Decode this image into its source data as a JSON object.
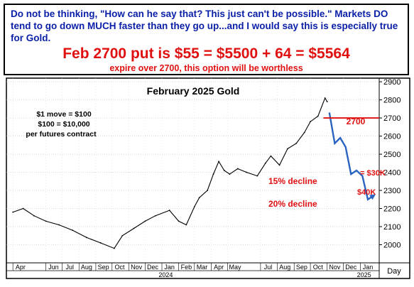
{
  "header": {
    "note": "Do not be thinking, \"How can he say that? This just can't be possible.\" Markets DO tend to go down MUCH faster than they go up...and I would say this is especially true for Gold.",
    "headline": "Feb 2700 put is $55 = $5500 + 64 = $5564",
    "subline": "expire over 2700, this option will be worthless"
  },
  "chart_data": {
    "type": "line",
    "title": "February 2025 Gold",
    "xlabel": "",
    "ylabel": "",
    "ylim": [
      1900,
      2920
    ],
    "yticks": [
      2000,
      2100,
      2200,
      2300,
      2400,
      2500,
      2600,
      2700,
      2800,
      2900
    ],
    "x_tick_labels": [
      "Apr",
      "Jun",
      "Jul",
      "Aug",
      "Sep",
      "Oct",
      "Nov",
      "Dec",
      "Jan",
      "Feb",
      "Mar",
      "Apr",
      "May",
      "Jul",
      "Aug",
      "Sep",
      "Oct",
      "Nov",
      "Dec",
      "Jan"
    ],
    "year_labels": [
      "2024",
      "2025"
    ],
    "x_axis_unit": "Day",
    "series": [
      {
        "x": [
          "2023-04-01",
          "2023-04-20",
          "2023-05-10",
          "2023-06-01",
          "2023-06-25",
          "2023-07-20",
          "2023-08-15",
          "2023-09-10",
          "2023-10-05",
          "2023-10-20",
          "2023-11-10",
          "2023-12-01",
          "2023-12-20",
          "2024-01-15",
          "2024-02-01",
          "2024-02-15",
          "2024-03-01",
          "2024-03-10",
          "2024-03-25",
          "2024-04-05",
          "2024-04-15",
          "2024-04-25",
          "2024-05-05",
          "2024-05-20",
          "2024-06-05",
          "2024-06-25",
          "2024-07-10",
          "2024-07-20",
          "2024-08-05",
          "2024-08-20",
          "2024-09-05",
          "2024-09-20",
          "2024-10-01",
          "2024-10-15",
          "2024-10-28",
          "2024-11-01"
        ],
        "values": [
          2180,
          2200,
          2160,
          2130,
          2110,
          2080,
          2040,
          2010,
          1980,
          2050,
          2090,
          2130,
          2160,
          2190,
          2130,
          2110,
          2210,
          2260,
          2300,
          2390,
          2460,
          2410,
          2390,
          2420,
          2400,
          2380,
          2450,
          2490,
          2440,
          2530,
          2560,
          2620,
          2680,
          2710,
          2810,
          2790
        ]
      }
    ],
    "projection": {
      "x": [
        "2024-11-05",
        "2024-11-15",
        "2024-11-25",
        "2024-12-05",
        "2024-12-15",
        "2024-12-25",
        "2025-01-05",
        "2025-01-15",
        "2025-01-25"
      ],
      "values": [
        2730,
        2560,
        2590,
        2540,
        2390,
        2410,
        2380,
        2250,
        2270
      ]
    },
    "annotations": {
      "scale_lines": [
        "$1 move = $100",
        "$100 = $10,000",
        "per futures contract"
      ],
      "strike_label": "2700",
      "strike_value": 2700,
      "decline_15": "15% decline",
      "decline_20": "20% decline",
      "gain_30k": "= $30K",
      "gain_40k": "$40K"
    },
    "colors": {
      "accent": "#e01010",
      "note": "#0a1fa8",
      "projection": "#2a63c0",
      "price": "#000000"
    }
  }
}
